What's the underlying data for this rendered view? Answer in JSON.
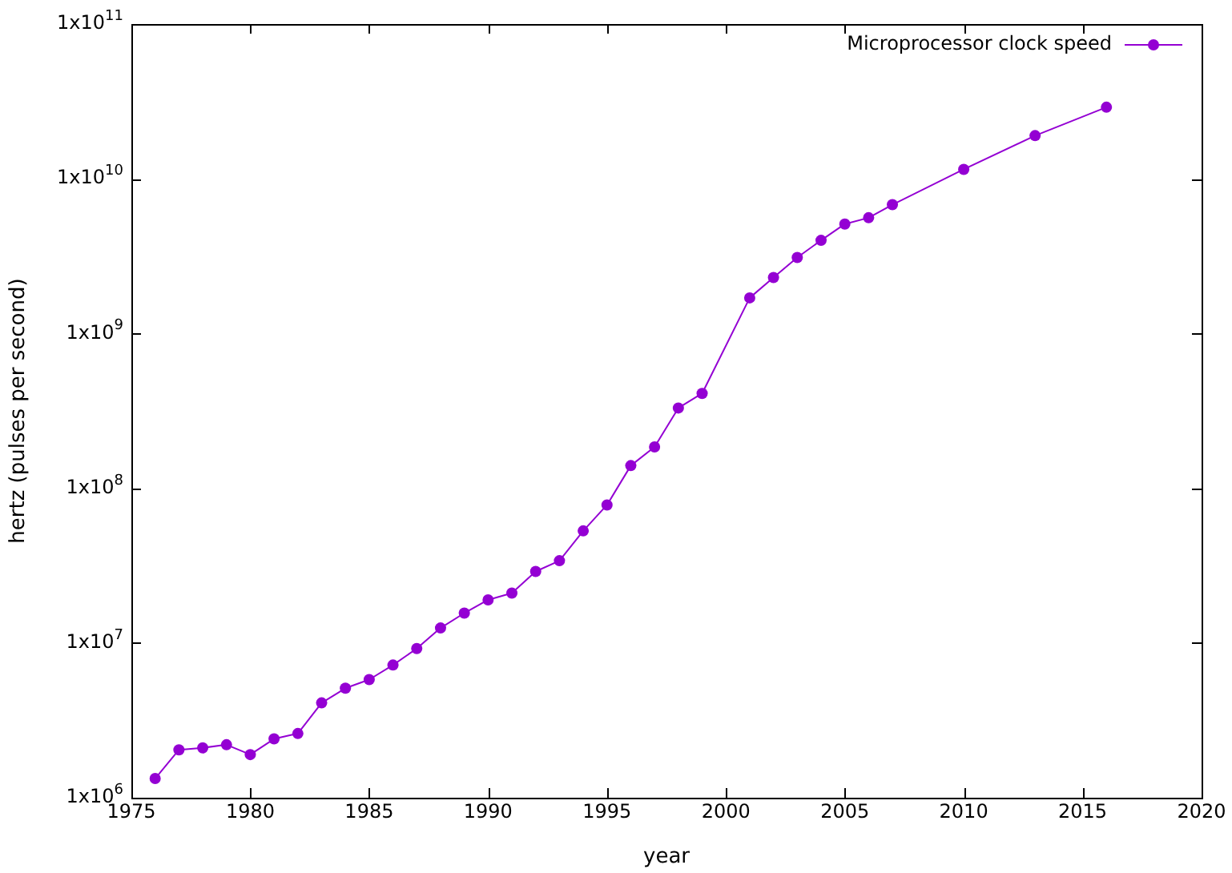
{
  "chart_data": {
    "type": "line",
    "xlabel": "year",
    "ylabel": "hertz (pulses per second)",
    "log": "y",
    "legend": "top right",
    "marker": "circle",
    "x": [
      1976,
      1977,
      1978,
      1979,
      1980,
      1981,
      1982,
      1983,
      1984,
      1985,
      1986,
      1987,
      1988,
      1989,
      1990,
      1991,
      1992,
      1993,
      1994,
      1995,
      1996,
      1997,
      1998,
      1999,
      2001,
      2002,
      2003,
      2004,
      2005,
      2006,
      2007,
      2010,
      2013,
      2016
    ],
    "series": [
      {
        "name": "Microprocessor clock speed",
        "color": "#9400d3",
        "values": [
          1330000,
          2040000,
          2100000,
          2200000,
          1900000,
          2400000,
          2600000,
          4100000,
          5100000,
          5800000,
          7200000,
          9200000,
          12500000,
          15600000,
          19000000,
          21000000,
          29000000,
          34000000,
          53000000,
          78000000,
          140000000,
          185000000,
          330000000,
          410000000,
          1700000000,
          2300000000,
          3100000000,
          4000000000,
          5100000000,
          5600000000,
          6800000000,
          11500000000,
          19000000000,
          29000000000
        ]
      }
    ],
    "xlim": [
      1975,
      2020
    ],
    "xticks": [
      1975,
      1980,
      1985,
      1990,
      1995,
      2000,
      2005,
      2010,
      2015,
      2020
    ],
    "ylim": [
      1000000,
      100000000000
    ],
    "yticks": [
      {
        "value": 1000000,
        "label": "1x10$^{6}$"
      },
      {
        "value": 10000000,
        "label": "1x10$^{7}$"
      },
      {
        "value": 100000000,
        "label": "1x10$^{8}$"
      },
      {
        "value": 1000000000,
        "label": "1x10$^{9}$"
      },
      {
        "value": 10000000000,
        "label": "1x10$^{10}$"
      },
      {
        "value": 100000000000,
        "label": "1x10$^{11}$"
      }
    ]
  }
}
